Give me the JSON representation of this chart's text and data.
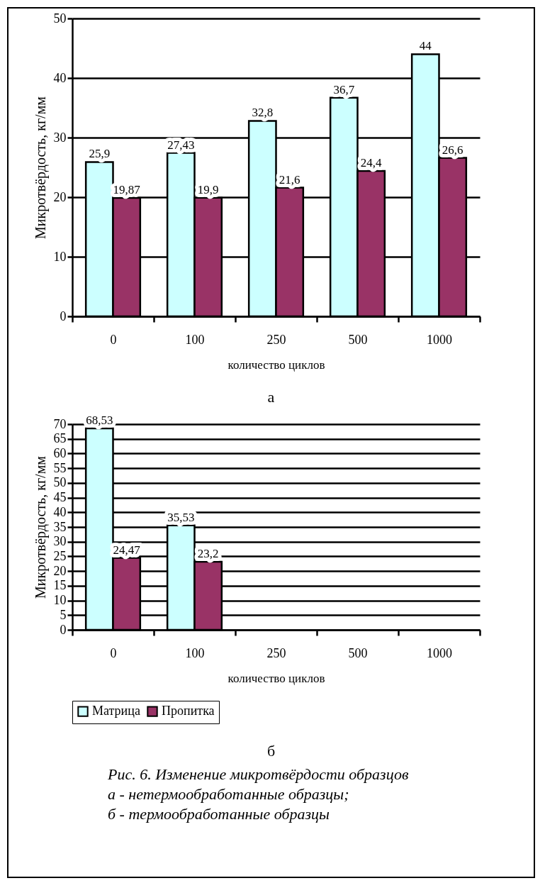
{
  "chart_data": [
    {
      "type": "bar",
      "ylabel": "Микротвёрдость, кг/мм",
      "xlabel": "количество циклов",
      "categories": [
        "0",
        "100",
        "250",
        "500",
        "1000"
      ],
      "ylim": [
        0,
        50
      ],
      "yticks": [
        0,
        10,
        20,
        30,
        40,
        50
      ],
      "grid": "y",
      "legend": false,
      "annotations": [
        "а"
      ],
      "series": [
        {
          "color": "#ccffff",
          "values": [
            25.9,
            27.43,
            32.8,
            36.7,
            44
          ],
          "value_labels": [
            "25,9",
            "27,43",
            "32,8",
            "36,7",
            "44"
          ]
        },
        {
          "color": "#993366",
          "values": [
            19.87,
            19.9,
            21.6,
            24.4,
            26.6
          ],
          "value_labels": [
            "19,87",
            "19,9",
            "21,6",
            "24,4",
            "26,6"
          ]
        }
      ]
    },
    {
      "type": "bar",
      "ylabel": "Микротвёрдость, кг/мм",
      "xlabel": "количество циклов",
      "categories": [
        "0",
        "100",
        "250",
        "500",
        "1000"
      ],
      "ylim": [
        0,
        70
      ],
      "yticks": [
        0,
        5,
        10,
        15,
        20,
        25,
        30,
        35,
        40,
        45,
        50,
        55,
        60,
        65,
        70
      ],
      "grid": "y",
      "legend": "bottom",
      "annotations": [
        "б",
        "Рис. 6. Изменение микротвёрдости образцов",
        "а - нетермообработанные образцы;",
        "б - термообработанные образцы"
      ],
      "series": [
        {
          "name": "Матрица",
          "color": "#ccffff",
          "values": [
            68.53,
            35.53,
            null,
            null,
            null
          ],
          "value_labels": [
            "68,53",
            "35,53",
            null,
            null,
            null
          ]
        },
        {
          "name": "Пропитка",
          "color": "#993366",
          "values": [
            24.47,
            23.2,
            null,
            null,
            null
          ],
          "value_labels": [
            "24,47",
            "23,2",
            null,
            null,
            null
          ]
        }
      ]
    }
  ]
}
